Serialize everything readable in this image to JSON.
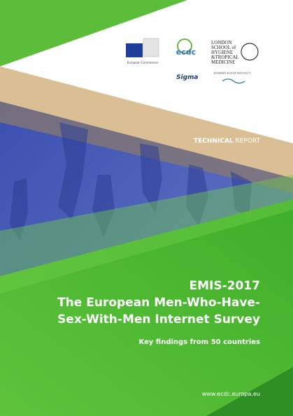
{
  "logos": {
    "european_commission": "European Commission",
    "ecdc": "ecdc",
    "lshtm": [
      "LONDON",
      "SCHOOL of",
      "HYGIENE",
      "&TROPICAL",
      "MEDICINE"
    ],
    "sigma": "Sigma",
    "rki": "ROBERT KOCH INSTITUT"
  },
  "report_type": {
    "bold": "TECHNICAL",
    "regular": "REPORT"
  },
  "title": [
    "EMIS-2017",
    "The European Men-Who-Have-",
    "Sex-With-Men Internet Survey"
  ],
  "subtitle": "Key findings from 50 countries",
  "url": "www.ecdc.europa.eu"
}
